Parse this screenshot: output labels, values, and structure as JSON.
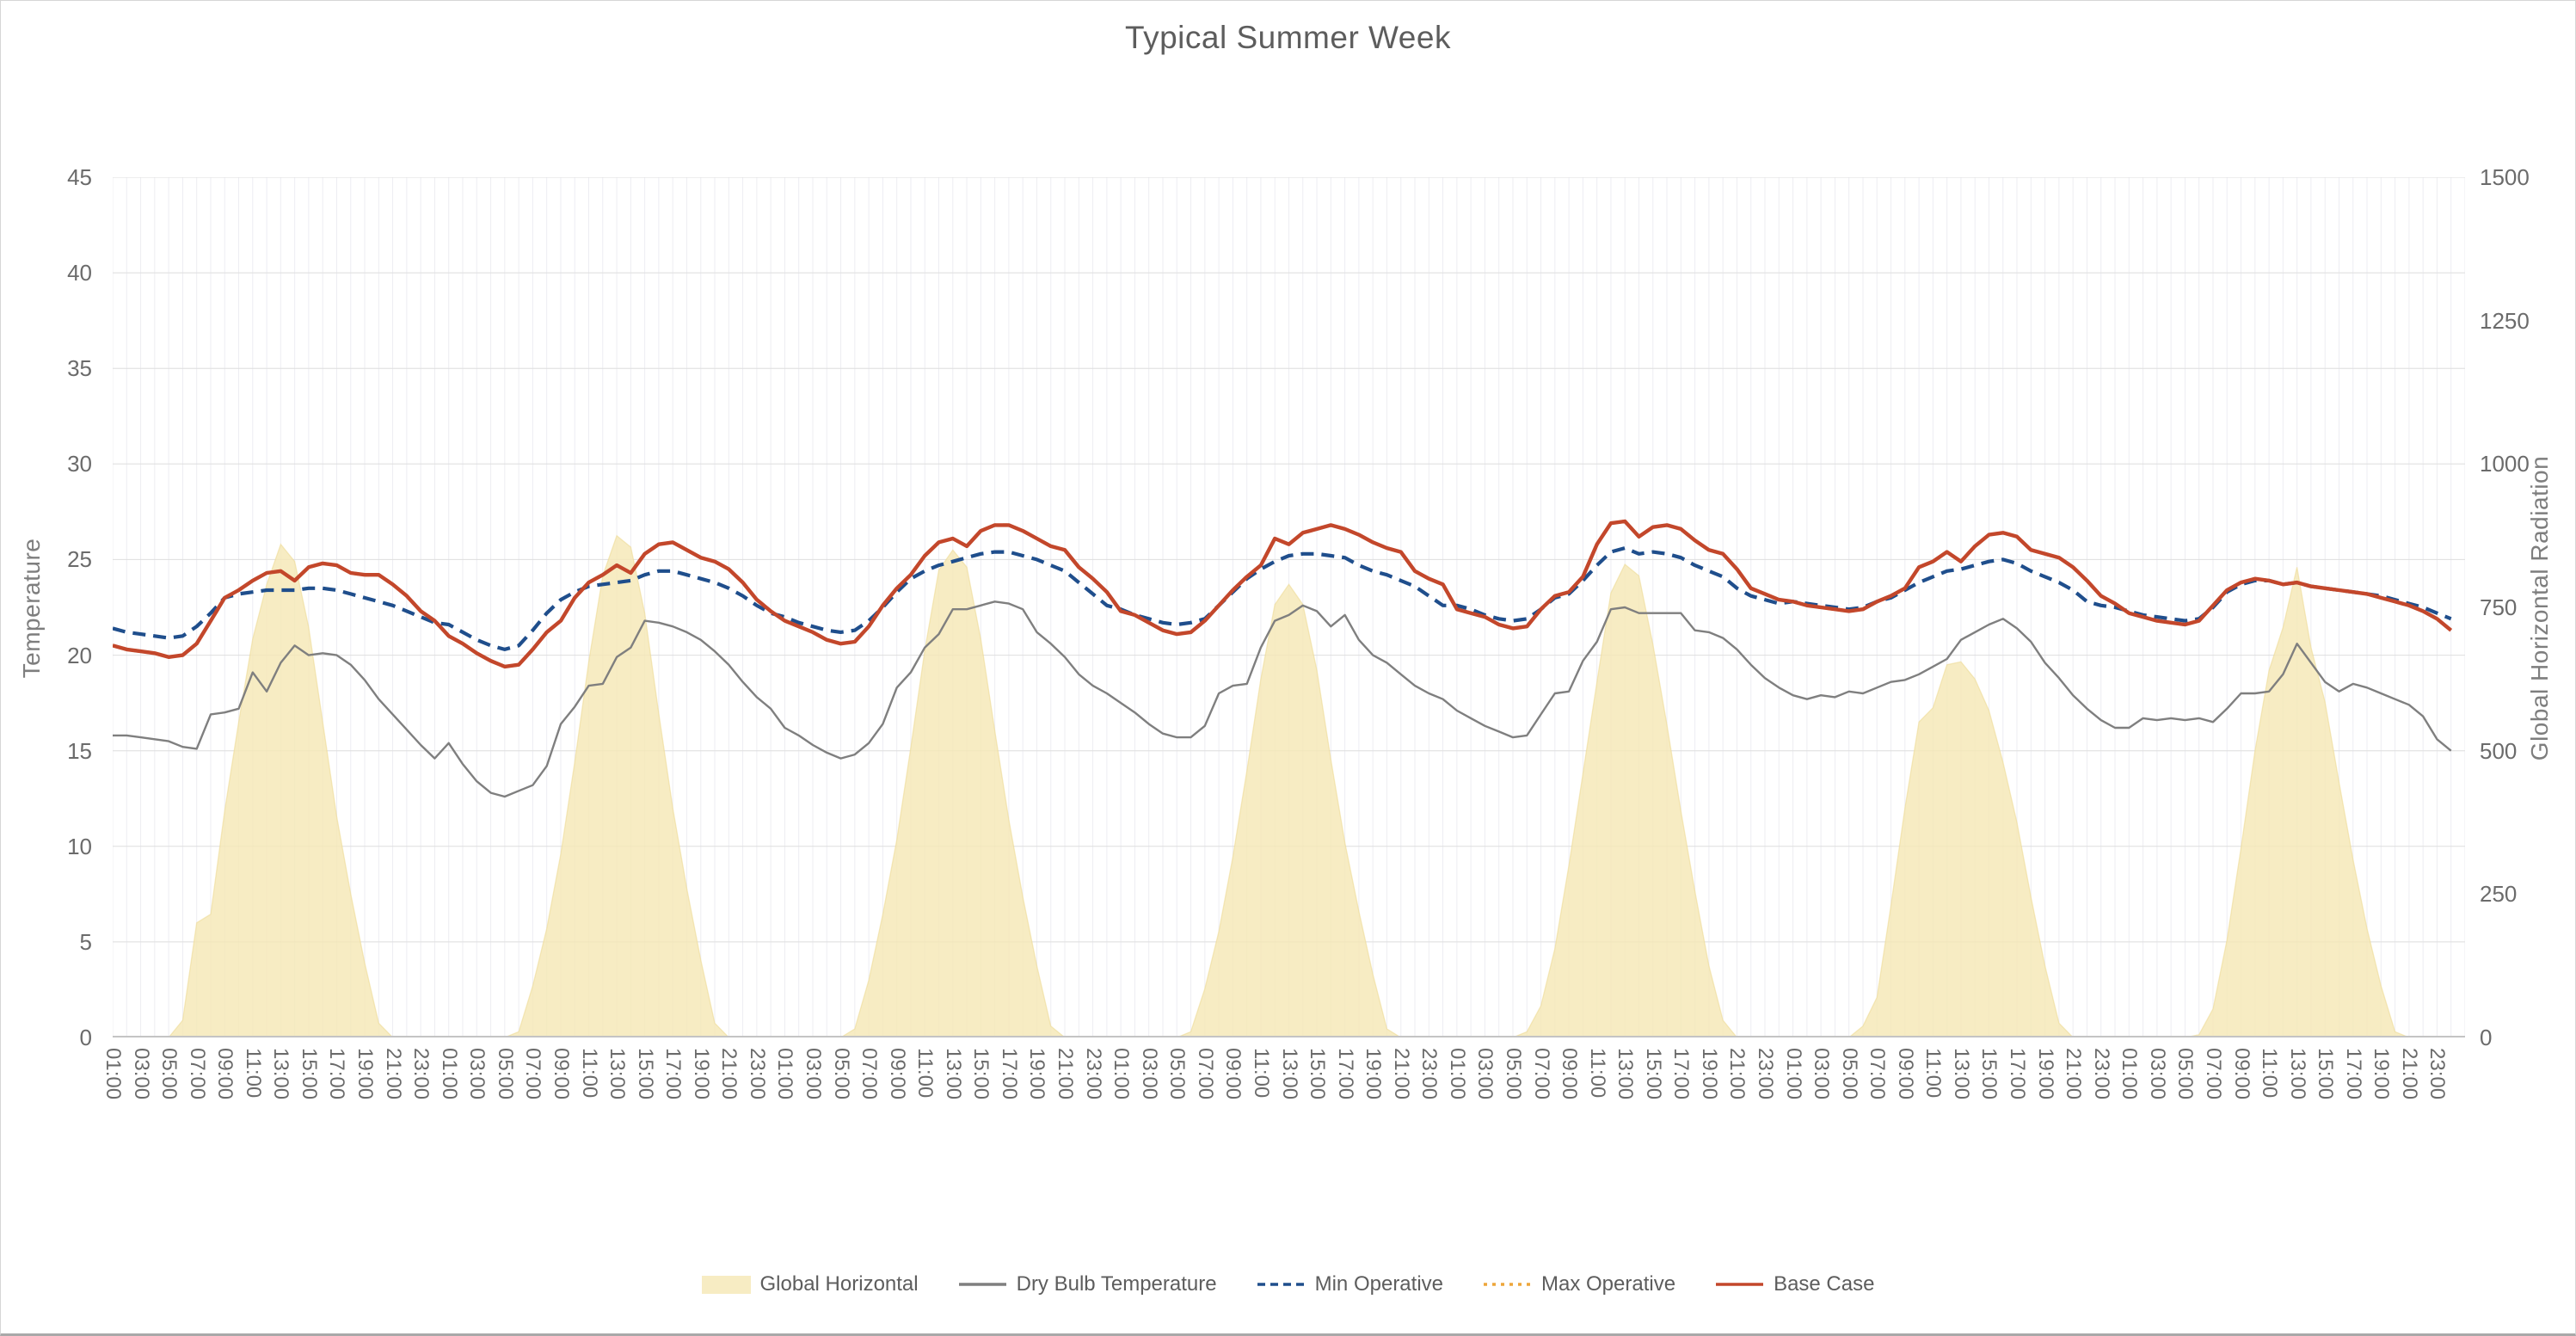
{
  "title": "Typical Summer Week",
  "axes": {
    "y_left": {
      "label": "Temperature",
      "ticks": [
        0,
        5,
        10,
        15,
        20,
        25,
        30,
        35,
        40,
        45
      ],
      "min": 0,
      "max": 45
    },
    "y_right": {
      "label": "Global Horizontal Radiation",
      "ticks": [
        0,
        250,
        500,
        750,
        1000,
        1250,
        1500
      ],
      "min": 0,
      "max": 1500
    },
    "x": {
      "tick_labels": [
        "01:00",
        "03:00",
        "05:00",
        "07:00",
        "09:00",
        "11:00",
        "13:00",
        "15:00",
        "17:00",
        "19:00",
        "21:00",
        "23:00",
        "01:00",
        "03:00",
        "05:00",
        "07:00",
        "09:00",
        "11:00",
        "13:00",
        "15:00",
        "17:00",
        "19:00",
        "21:00",
        "23:00",
        "01:00",
        "03:00",
        "05:00",
        "07:00",
        "09:00",
        "11:00",
        "13:00",
        "15:00",
        "17:00",
        "19:00",
        "21:00",
        "23:00",
        "01:00",
        "03:00",
        "05:00",
        "07:00",
        "09:00",
        "11:00",
        "13:00",
        "15:00",
        "17:00",
        "19:00",
        "21:00",
        "23:00",
        "01:00",
        "03:00",
        "05:00",
        "07:00",
        "09:00",
        "11:00",
        "13:00",
        "15:00",
        "17:00",
        "19:00",
        "21:00",
        "23:00",
        "01:00",
        "03:00",
        "05:00",
        "07:00",
        "09:00",
        "11:00",
        "13:00",
        "15:00",
        "17:00",
        "19:00",
        "21:00",
        "23:00",
        "01:00",
        "03:00",
        "05:00",
        "07:00",
        "09:00",
        "11:00",
        "13:00",
        "15:00",
        "17:00",
        "19:00",
        "21:00",
        "23:00"
      ]
    }
  },
  "legend": {
    "items": [
      {
        "label": "Global Horizontal",
        "swatch": "area",
        "color": "#f7ecc3"
      },
      {
        "label": "Dry Bulb Temperature",
        "swatch": "line",
        "color": "#7f7f7f"
      },
      {
        "label": "Min Operative",
        "swatch": "dashed",
        "color": "#1f4e8c"
      },
      {
        "label": "Max Operative",
        "swatch": "dotted",
        "color": "#eda63a"
      },
      {
        "label": "Base Case",
        "swatch": "line",
        "color": "#c3472b"
      }
    ]
  },
  "colors": {
    "grid_vertical": "#ededf2",
    "grid_horizontal": "#dedede",
    "axis_line": "#c4c4c4",
    "area_fill": "#f5e7b4",
    "area_edge": "#ecd98f",
    "dry_bulb": "#7f7f7f",
    "min_operative": "#1f4e8c",
    "max_operative": "#eda63a",
    "base_case": "#c3472b",
    "text": "#6b6b6b"
  },
  "chart_data": {
    "type": "line",
    "title": "Typical Summer Week",
    "xlabel": "",
    "ylabel_left": "Temperature",
    "ylabel_right": "Global Horizontal Radiation",
    "x_description": "168 hourly values (7 days x 24 h, 01:00-24:00 each day), x tick labels every 2 hours",
    "y_left_range": [
      0,
      45
    ],
    "y_right_range": [
      0,
      1500
    ],
    "grid": true,
    "legend_position": "bottom-center",
    "series": [
      {
        "name": "Global Horizontal",
        "type": "area",
        "axis": "right",
        "color": "#f5e7b4",
        "values_by_day": [
          [
            0,
            0,
            0,
            0,
            0,
            30,
            200,
            215,
            395,
            550,
            695,
            790,
            860,
            830,
            715,
            550,
            385,
            250,
            130,
            25,
            0,
            0,
            0,
            0
          ],
          [
            0,
            0,
            0,
            0,
            0,
            10,
            90,
            190,
            320,
            480,
            655,
            805,
            875,
            855,
            740,
            565,
            400,
            260,
            135,
            25,
            0,
            0,
            0,
            0
          ],
          [
            0,
            0,
            0,
            0,
            0,
            15,
            100,
            215,
            345,
            505,
            675,
            815,
            850,
            820,
            695,
            535,
            380,
            245,
            125,
            20,
            0,
            0,
            0,
            0
          ],
          [
            0,
            0,
            0,
            0,
            0,
            10,
            85,
            185,
            315,
            465,
            625,
            755,
            790,
            755,
            640,
            485,
            340,
            220,
            110,
            15,
            0,
            0,
            0,
            0
          ],
          [
            0,
            0,
            0,
            0,
            0,
            10,
            55,
            155,
            300,
            460,
            620,
            775,
            825,
            805,
            685,
            545,
            395,
            255,
            125,
            30,
            0,
            0,
            0,
            0
          ],
          [
            0,
            0,
            0,
            0,
            0,
            20,
            70,
            230,
            400,
            550,
            575,
            650,
            655,
            625,
            570,
            480,
            375,
            245,
            125,
            25,
            0,
            0,
            0,
            0
          ],
          [
            0,
            0,
            0,
            0,
            0,
            5,
            50,
            170,
            330,
            500,
            640,
            715,
            820,
            680,
            585,
            445,
            310,
            190,
            90,
            10,
            0,
            0,
            0,
            0
          ]
        ]
      },
      {
        "name": "Dry Bulb Temperature",
        "type": "line",
        "axis": "left",
        "color": "#7f7f7f",
        "values_by_day": [
          [
            15.8,
            15.8,
            15.7,
            15.6,
            15.5,
            15.2,
            15.1,
            16.9,
            17.0,
            17.2,
            19.1,
            18.1,
            19.6,
            20.5,
            20.0,
            20.1,
            20.0,
            19.5,
            18.7,
            17.7,
            16.9,
            16.1,
            15.3,
            14.6
          ],
          [
            15.4,
            14.3,
            13.4,
            12.8,
            12.6,
            12.9,
            13.2,
            14.2,
            16.4,
            17.3,
            18.4,
            18.5,
            19.9,
            20.4,
            21.8,
            21.7,
            21.5,
            21.2,
            20.8,
            20.2,
            19.5,
            18.6,
            17.8,
            17.2
          ],
          [
            16.2,
            15.8,
            15.3,
            14.9,
            14.6,
            14.8,
            15.4,
            16.4,
            18.3,
            19.1,
            20.4,
            21.1,
            22.4,
            22.4,
            22.6,
            22.8,
            22.7,
            22.4,
            21.2,
            20.6,
            19.9,
            19.0,
            18.4,
            18.0
          ],
          [
            17.5,
            17.0,
            16.4,
            15.9,
            15.7,
            15.7,
            16.3,
            18.0,
            18.4,
            18.5,
            20.4,
            21.8,
            22.1,
            22.6,
            22.3,
            21.5,
            22.1,
            20.8,
            20.0,
            19.6,
            19.0,
            18.4,
            18.0,
            17.7
          ],
          [
            17.1,
            16.7,
            16.3,
            16.0,
            15.7,
            15.8,
            16.9,
            18.0,
            18.1,
            19.7,
            20.7,
            22.4,
            22.5,
            22.2,
            22.2,
            22.2,
            22.2,
            21.3,
            21.2,
            20.9,
            20.3,
            19.5,
            18.8,
            18.3
          ],
          [
            17.9,
            17.7,
            17.9,
            17.8,
            18.1,
            18.0,
            18.3,
            18.6,
            18.7,
            19.0,
            19.4,
            19.8,
            20.8,
            21.2,
            21.6,
            21.9,
            21.4,
            20.7,
            19.6,
            18.8,
            17.9,
            17.2,
            16.6,
            16.2
          ],
          [
            16.2,
            16.7,
            16.6,
            16.7,
            16.6,
            16.7,
            16.5,
            17.2,
            18.0,
            18.0,
            18.1,
            19.0,
            20.6,
            19.6,
            18.6,
            18.1,
            18.5,
            18.3,
            18.0,
            17.7,
            17.4,
            16.8,
            15.6,
            15.0
          ]
        ]
      },
      {
        "name": "Min Operative",
        "type": "dashed",
        "axis": "left",
        "color": "#1f4e8c",
        "values_by_day": [
          [
            21.4,
            21.2,
            21.1,
            21.0,
            20.9,
            21.0,
            21.5,
            22.2,
            23.0,
            23.2,
            23.3,
            23.4,
            23.4,
            23.4,
            23.5,
            23.5,
            23.4,
            23.2,
            23.0,
            22.8,
            22.6,
            22.3,
            22.0,
            21.7
          ],
          [
            21.6,
            21.2,
            20.8,
            20.5,
            20.3,
            20.5,
            21.3,
            22.2,
            22.9,
            23.3,
            23.6,
            23.7,
            23.8,
            23.9,
            24.2,
            24.4,
            24.4,
            24.2,
            24.0,
            23.8,
            23.5,
            23.1,
            22.6,
            22.2
          ],
          [
            22.0,
            21.7,
            21.5,
            21.3,
            21.2,
            21.3,
            21.8,
            22.5,
            23.3,
            24.0,
            24.4,
            24.7,
            24.9,
            25.1,
            25.3,
            25.4,
            25.4,
            25.2,
            25.0,
            24.7,
            24.4,
            23.8,
            23.2,
            22.6
          ],
          [
            22.4,
            22.1,
            21.9,
            21.7,
            21.6,
            21.7,
            21.9,
            22.6,
            23.3,
            24.0,
            24.5,
            24.9,
            25.2,
            25.3,
            25.3,
            25.2,
            25.1,
            24.7,
            24.4,
            24.2,
            23.9,
            23.6,
            23.1,
            22.6
          ],
          [
            22.6,
            22.4,
            22.1,
            21.9,
            21.8,
            21.9,
            22.4,
            23.0,
            23.2,
            23.9,
            24.7,
            25.4,
            25.6,
            25.3,
            25.4,
            25.3,
            25.1,
            24.7,
            24.4,
            24.1,
            23.5,
            23.1,
            22.9,
            22.7
          ],
          [
            22.8,
            22.7,
            22.6,
            22.5,
            22.4,
            22.5,
            22.8,
            23.0,
            23.4,
            23.8,
            24.1,
            24.4,
            24.5,
            24.7,
            24.9,
            25.0,
            24.8,
            24.4,
            24.1,
            23.8,
            23.4,
            22.8,
            22.6,
            22.5
          ],
          [
            22.3,
            22.1,
            22.0,
            21.9,
            21.8,
            21.9,
            22.5,
            23.3,
            23.7,
            23.9,
            23.9,
            23.7,
            23.8,
            23.6,
            23.5,
            23.4,
            23.3,
            23.2,
            23.1,
            22.9,
            22.7,
            22.5,
            22.2,
            21.9
          ]
        ]
      },
      {
        "name": "Max Operative",
        "type": "dotted",
        "axis": "left",
        "color": "#eda63a",
        "note": "coincides with Base Case line in the plot (hidden beneath it)",
        "values_by_day": [
          [
            20.5,
            20.3,
            20.2,
            20.1,
            19.9,
            20.0,
            20.6,
            21.8,
            23.0,
            23.4,
            23.9,
            24.3,
            24.4,
            23.9,
            24.6,
            24.8,
            24.7,
            24.3,
            24.2,
            24.2,
            23.7,
            23.1,
            22.3,
            21.8
          ],
          [
            21.0,
            20.6,
            20.1,
            19.7,
            19.4,
            19.5,
            20.3,
            21.2,
            21.8,
            23.0,
            23.8,
            24.2,
            24.7,
            24.3,
            25.3,
            25.8,
            25.9,
            25.5,
            25.1,
            24.9,
            24.5,
            23.8,
            22.9,
            22.3
          ],
          [
            21.8,
            21.5,
            21.2,
            20.8,
            20.6,
            20.7,
            21.5,
            22.6,
            23.5,
            24.2,
            25.2,
            25.9,
            26.1,
            25.7,
            26.5,
            26.8,
            26.8,
            26.5,
            26.1,
            25.7,
            25.5,
            24.6,
            24.0,
            23.3
          ],
          [
            22.3,
            22.1,
            21.7,
            21.3,
            21.1,
            21.2,
            21.8,
            22.6,
            23.4,
            24.1,
            24.7,
            26.1,
            25.8,
            26.4,
            26.6,
            26.8,
            26.6,
            26.3,
            25.9,
            25.6,
            25.4,
            24.4,
            24.0,
            23.7
          ],
          [
            22.4,
            22.2,
            22.0,
            21.6,
            21.4,
            21.5,
            22.4,
            23.1,
            23.3,
            24.1,
            25.8,
            26.9,
            27.0,
            26.2,
            26.7,
            26.8,
            26.6,
            26.0,
            25.5,
            25.3,
            24.5,
            23.5,
            23.2,
            22.9
          ],
          [
            22.8,
            22.6,
            22.5,
            22.4,
            22.3,
            22.4,
            22.8,
            23.1,
            23.5,
            24.6,
            24.9,
            25.4,
            24.9,
            25.7,
            26.3,
            26.4,
            26.2,
            25.5,
            25.3,
            25.1,
            24.6,
            23.9,
            23.1,
            22.7
          ],
          [
            22.2,
            22.0,
            21.8,
            21.7,
            21.6,
            21.8,
            22.6,
            23.4,
            23.8,
            24.0,
            23.9,
            23.7,
            23.8,
            23.6,
            23.5,
            23.4,
            23.3,
            23.2,
            23.0,
            22.8,
            22.6,
            22.3,
            21.9,
            21.3
          ]
        ]
      },
      {
        "name": "Base Case",
        "type": "line",
        "axis": "left",
        "color": "#c3472b",
        "values_by_day": [
          [
            20.5,
            20.3,
            20.2,
            20.1,
            19.9,
            20.0,
            20.6,
            21.8,
            23.0,
            23.4,
            23.9,
            24.3,
            24.4,
            23.9,
            24.6,
            24.8,
            24.7,
            24.3,
            24.2,
            24.2,
            23.7,
            23.1,
            22.3,
            21.8
          ],
          [
            21.0,
            20.6,
            20.1,
            19.7,
            19.4,
            19.5,
            20.3,
            21.2,
            21.8,
            23.0,
            23.8,
            24.2,
            24.7,
            24.3,
            25.3,
            25.8,
            25.9,
            25.5,
            25.1,
            24.9,
            24.5,
            23.8,
            22.9,
            22.3
          ],
          [
            21.8,
            21.5,
            21.2,
            20.8,
            20.6,
            20.7,
            21.5,
            22.6,
            23.5,
            24.2,
            25.2,
            25.9,
            26.1,
            25.7,
            26.5,
            26.8,
            26.8,
            26.5,
            26.1,
            25.7,
            25.5,
            24.6,
            24.0,
            23.3
          ],
          [
            22.3,
            22.1,
            21.7,
            21.3,
            21.1,
            21.2,
            21.8,
            22.6,
            23.4,
            24.1,
            24.7,
            26.1,
            25.8,
            26.4,
            26.6,
            26.8,
            26.6,
            26.3,
            25.9,
            25.6,
            25.4,
            24.4,
            24.0,
            23.7
          ],
          [
            22.4,
            22.2,
            22.0,
            21.6,
            21.4,
            21.5,
            22.4,
            23.1,
            23.3,
            24.1,
            25.8,
            26.9,
            27.0,
            26.2,
            26.7,
            26.8,
            26.6,
            26.0,
            25.5,
            25.3,
            24.5,
            23.5,
            23.2,
            22.9
          ],
          [
            22.8,
            22.6,
            22.5,
            22.4,
            22.3,
            22.4,
            22.8,
            23.1,
            23.5,
            24.6,
            24.9,
            25.4,
            24.9,
            25.7,
            26.3,
            26.4,
            26.2,
            25.5,
            25.3,
            25.1,
            24.6,
            23.9,
            23.1,
            22.7
          ],
          [
            22.2,
            22.0,
            21.8,
            21.7,
            21.6,
            21.8,
            22.6,
            23.4,
            23.8,
            24.0,
            23.9,
            23.7,
            23.8,
            23.6,
            23.5,
            23.4,
            23.3,
            23.2,
            23.0,
            22.8,
            22.6,
            22.3,
            21.9,
            21.3
          ]
        ]
      }
    ]
  }
}
